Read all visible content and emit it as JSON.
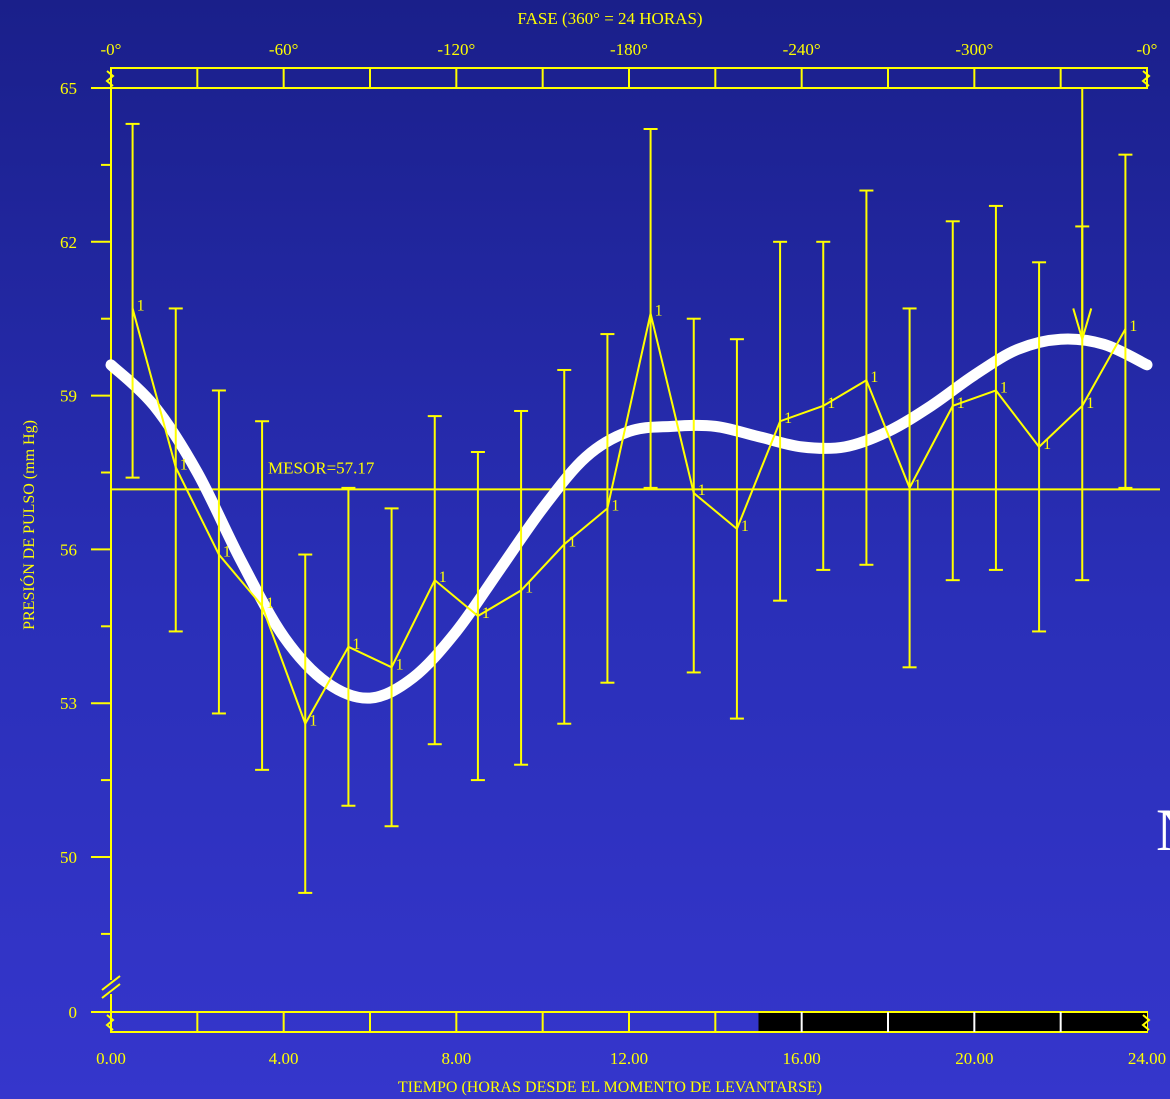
{
  "colors": {
    "axis": "#ffff00",
    "fit_curve": "#ffffff",
    "night_band": "#000000"
  },
  "offscreen_fragment": "N",
  "chart_data": {
    "type": "line",
    "title": "",
    "xlabel": "TIEMPO (HORAS DESDE EL MOMENTO DE LEVANTARSE)",
    "ylabel": "PRESIÓN DE PULSO (mm Hg)",
    "top_axis_label": "FASE  (360° = 24 HORAS)",
    "xlim": [
      0,
      24
    ],
    "ylim": [
      48,
      65
    ],
    "y_axis_break": true,
    "x_ticks": [
      0,
      4,
      8,
      12,
      16,
      20,
      24
    ],
    "x_tick_labels": [
      "0.00",
      "4.00",
      "8.00",
      "12.00",
      "16.00",
      "20.00",
      "24.00"
    ],
    "y_ticks": [
      50,
      53,
      56,
      59,
      62,
      65
    ],
    "y_tick_labels": [
      "50",
      "53",
      "56",
      "59",
      "62",
      "65"
    ],
    "y_break_label": "0",
    "phase_ticks_hours": [
      0,
      4,
      8,
      12,
      16,
      20,
      24
    ],
    "phase_tick_labels": [
      "-0°",
      "-60°",
      "-120°",
      "-180°",
      "-240°",
      "-300°",
      "-0°"
    ],
    "mesor": 57.17,
    "mesor_label": "MESOR=57.17",
    "acrophase_hour": 22.5,
    "night_band_hours": [
      15,
      24
    ],
    "point_label": "1",
    "series": [
      {
        "type": "errorbar",
        "x": [
          0.5,
          1.5,
          2.5,
          3.5,
          4.5,
          5.5,
          6.5,
          7.5,
          8.5,
          9.5,
          10.5,
          11.5,
          12.5,
          13.5,
          14.5,
          15.5,
          16.5,
          17.5,
          18.5,
          19.5,
          20.5,
          21.5,
          22.5,
          23.5
        ],
        "y": [
          60.7,
          57.6,
          55.9,
          54.9,
          52.6,
          54.1,
          53.7,
          55.4,
          54.7,
          55.2,
          56.1,
          56.8,
          60.6,
          57.1,
          56.4,
          58.5,
          58.8,
          59.3,
          57.2,
          58.8,
          59.1,
          58.0,
          58.8,
          60.3
        ],
        "lower": [
          57.4,
          54.4,
          52.8,
          51.7,
          49.3,
          51.0,
          50.6,
          52.2,
          51.5,
          51.8,
          52.6,
          53.4,
          57.2,
          53.6,
          52.7,
          55.0,
          55.6,
          55.7,
          53.7,
          55.4,
          55.6,
          54.4,
          55.4,
          57.2
        ],
        "upper": [
          64.3,
          60.7,
          59.1,
          58.5,
          55.9,
          57.2,
          56.8,
          58.6,
          57.9,
          58.7,
          59.5,
          60.2,
          64.2,
          60.5,
          60.1,
          62.0,
          62.0,
          63.0,
          60.7,
          62.4,
          62.7,
          61.6,
          62.3,
          63.7
        ]
      },
      {
        "type": "fit",
        "x": [
          0,
          1,
          2,
          3,
          4,
          5,
          6,
          7,
          8,
          9,
          10,
          11,
          12,
          13,
          14,
          15,
          16,
          17,
          18,
          19,
          20,
          21,
          22,
          23,
          24
        ],
        "y": [
          59.6,
          58.8,
          57.5,
          55.8,
          54.3,
          53.4,
          53.1,
          53.5,
          54.4,
          55.6,
          56.8,
          57.8,
          58.3,
          58.4,
          58.4,
          58.2,
          58.0,
          58.0,
          58.3,
          58.8,
          59.4,
          59.9,
          60.1,
          60.0,
          59.6
        ]
      }
    ]
  }
}
